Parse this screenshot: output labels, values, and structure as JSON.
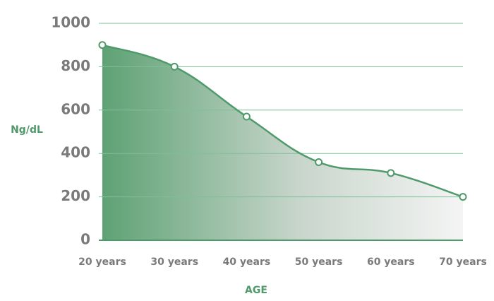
{
  "chart_data": {
    "type": "area",
    "x_label": "AGE",
    "y_label": "Ng/dL",
    "categories": [
      "20 years",
      "30 years",
      "40 years",
      "50 years",
      "60 years",
      "70 years"
    ],
    "values": [
      900,
      800,
      570,
      360,
      310,
      200
    ],
    "color": "#4f9a6b",
    "ylim": [
      0,
      1000
    ],
    "yticks": [
      0,
      200,
      400,
      600,
      800,
      1000
    ],
    "grid": true
  }
}
